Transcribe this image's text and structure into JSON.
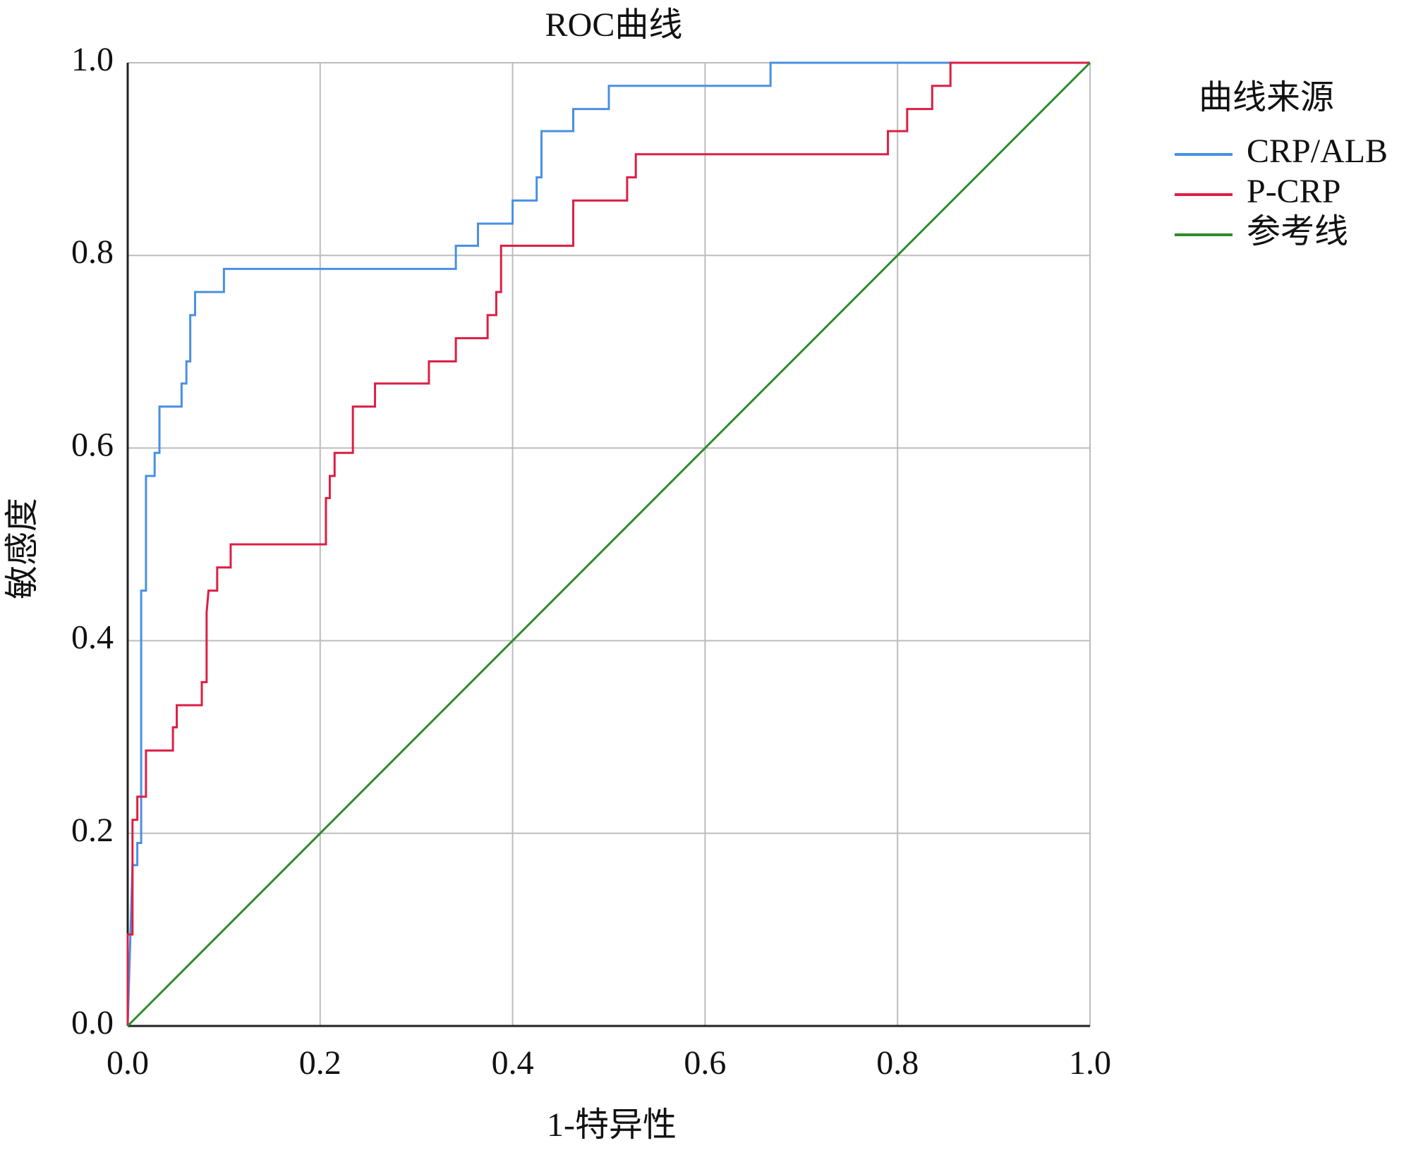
{
  "chart_data": {
    "type": "line",
    "title": "ROC曲线",
    "x_label": "1-特异性",
    "y_label": "敏感度",
    "legend_title": "曲线来源",
    "grid": true,
    "xlim": [
      0,
      1
    ],
    "ylim": [
      0,
      1
    ],
    "xticks": [
      {
        "value": 0,
        "label": "0.0"
      },
      0.2,
      0.4,
      0.6,
      0.8,
      {
        "value": 1,
        "label": "1.0"
      }
    ],
    "yticks": [
      {
        "value": 0,
        "label": "0.0"
      },
      0.2,
      0.4,
      0.6,
      0.8,
      {
        "value": 1,
        "label": "1.0"
      }
    ],
    "series": [
      {
        "name": "CRP/ALB",
        "color": "#4a90e2",
        "x": [
          0,
          0.005,
          0.01,
          0.01,
          0.014,
          0.014,
          0.019,
          0.019,
          0.028,
          0.028,
          0.033,
          0.033,
          0.056,
          0.056,
          0.061,
          0.061,
          0.065,
          0.065,
          0.07,
          0.07,
          0.1,
          0.1,
          0.341,
          0.341,
          0.364,
          0.364,
          0.4,
          0.4,
          0.425,
          0.425,
          0.43,
          0.43,
          0.463,
          0.463,
          0.5,
          0.5,
          0.668,
          0.668,
          1
        ],
        "values": [
          0,
          0.167,
          0.167,
          0.19,
          0.19,
          0.452,
          0.452,
          0.571,
          0.571,
          0.595,
          0.595,
          0.643,
          0.643,
          0.667,
          0.667,
          0.69,
          0.69,
          0.738,
          0.738,
          0.762,
          0.762,
          0.786,
          0.786,
          0.81,
          0.81,
          0.833,
          0.833,
          0.857,
          0.857,
          0.881,
          0.881,
          0.929,
          0.929,
          0.952,
          0.952,
          0.976,
          0.976,
          1,
          1
        ]
      },
      {
        "name": "P-CRP",
        "color": "#dc1f45",
        "x": [
          0,
          0,
          0.005,
          0.005,
          0.01,
          0.01,
          0.019,
          0.019,
          0.047,
          0.047,
          0.051,
          0.051,
          0.077,
          0.077,
          0.082,
          0.082,
          0.084,
          0.093,
          0.093,
          0.107,
          0.107,
          0.206,
          0.206,
          0.21,
          0.21,
          0.215,
          0.215,
          0.234,
          0.234,
          0.257,
          0.257,
          0.313,
          0.313,
          0.341,
          0.341,
          0.374,
          0.374,
          0.383,
          0.383,
          0.388,
          0.388,
          0.463,
          0.463,
          0.519,
          0.519,
          0.528,
          0.528,
          0.79,
          0.79,
          0.81,
          0.81,
          0.836,
          0.836,
          0.855,
          0.855,
          1
        ],
        "values": [
          0,
          0.095,
          0.095,
          0.214,
          0.214,
          0.238,
          0.238,
          0.286,
          0.286,
          0.31,
          0.31,
          0.333,
          0.333,
          0.357,
          0.357,
          0.429,
          0.452,
          0.452,
          0.476,
          0.476,
          0.5,
          0.5,
          0.548,
          0.548,
          0.571,
          0.571,
          0.595,
          0.595,
          0.643,
          0.643,
          0.667,
          0.667,
          0.69,
          0.69,
          0.714,
          0.714,
          0.738,
          0.738,
          0.762,
          0.762,
          0.81,
          0.81,
          0.857,
          0.857,
          0.881,
          0.881,
          0.905,
          0.905,
          0.929,
          0.929,
          0.952,
          0.952,
          0.976,
          0.976,
          1,
          1
        ]
      },
      {
        "name": "参考线",
        "color": "#2e8b2e",
        "x": [
          0,
          1
        ],
        "values": [
          0,
          1
        ]
      }
    ]
  }
}
